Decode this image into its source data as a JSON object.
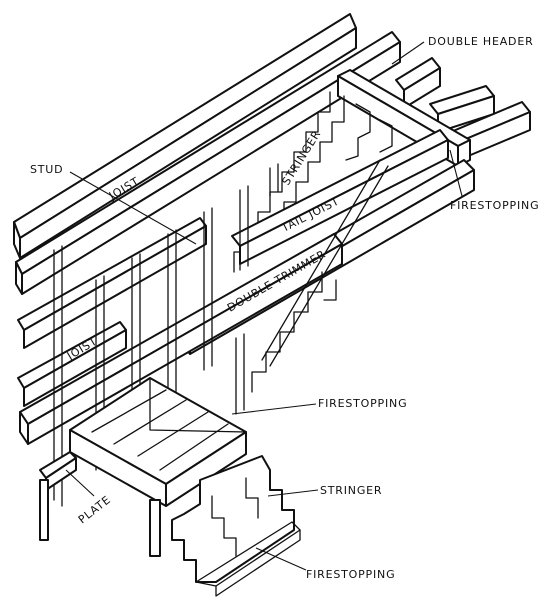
{
  "labels": {
    "double_header": "DOUBLE HEADER",
    "joist_top": "JOIST",
    "stud": "STUD",
    "stringer_upper": "STRINGER",
    "tail_joist": "TAIL JOIST",
    "firestopping_right": "FIRESTOPPING",
    "double_trimmer": "DOUBLE TRIMMER",
    "joist_left": "JOIST",
    "firestopping_mid": "FIRESTOPPING",
    "stringer_lower": "STRINGER",
    "plate": "PLATE",
    "firestopping_bottom": "FIRESTOPPING"
  },
  "colors": {
    "ink": "#111111",
    "paper": "#ffffff"
  }
}
